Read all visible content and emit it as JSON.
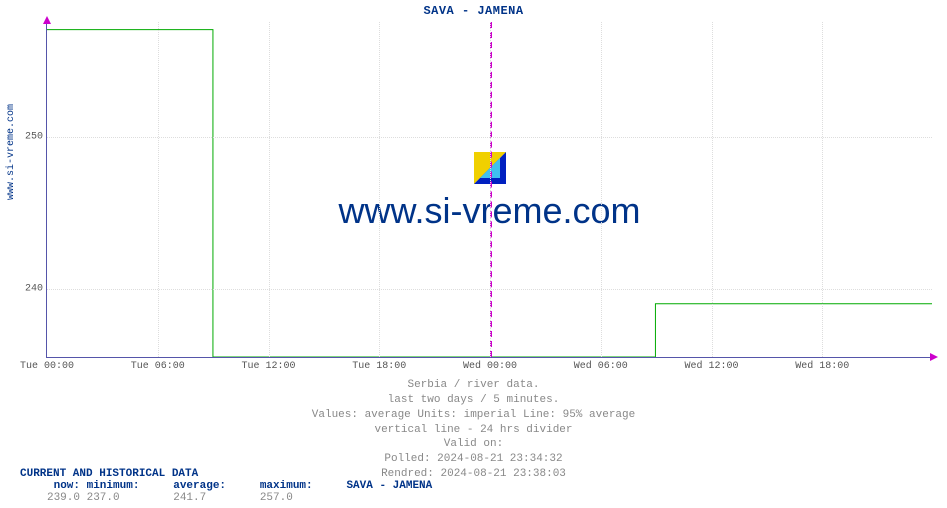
{
  "title": "SAVA -  JAMENA",
  "ylabel_watermark": "www.si-vreme.com",
  "watermark_text": "www.si-vreme.com",
  "colors": {
    "series_line": "#00aa00",
    "axis": "#5555aa",
    "grid": "#dddddd",
    "divider": "#cc00cc",
    "title": "#003388",
    "meta_text": "#888888",
    "tick_text": "#555555",
    "logo_yellow": "#f0d000",
    "logo_blue": "#0020c0",
    "logo_cyan": "#40c0f0",
    "background": "#ffffff"
  },
  "chart": {
    "type": "line",
    "x_range_hours": 48,
    "y_min": 235.5,
    "y_max": 257.5,
    "y_ticks": [
      240,
      250
    ],
    "x_ticks": [
      "Tue 00:00",
      "Tue 06:00",
      "Tue 12:00",
      "Tue 18:00",
      "Wed 00:00",
      "Wed 06:00",
      "Wed 12:00",
      "Wed 18:00"
    ],
    "divider_at_hours": 24,
    "series": {
      "points": [
        [
          0,
          257
        ],
        [
          9,
          257
        ],
        [
          9,
          0
        ],
        [
          33,
          0
        ],
        [
          33,
          239
        ],
        [
          48,
          239
        ]
      ],
      "line_width": 1,
      "null_segment_hours": [
        9,
        33
      ],
      "high_value": 257,
      "low_value": 239
    }
  },
  "meta": {
    "line1": "Serbia / river data.",
    "line2": "last two days / 5 minutes.",
    "line3": "Values: average  Units: imperial  Line: 95% average",
    "line4": "vertical line - 24 hrs  divider",
    "line5": "Valid on:",
    "line6": "Polled: 2024-08-21 23:34:32",
    "line7": "Rendred: 2024-08-21 23:38:03"
  },
  "stats": {
    "header": "CURRENT AND HISTORICAL DATA",
    "labels": {
      "now": "now:",
      "min": "minimum:",
      "avg": "average:",
      "max": "maximum:",
      "name": "SAVA -  JAMENA"
    },
    "values": {
      "now": "239.0",
      "min": "237.0",
      "avg": "241.7",
      "max": "257.0"
    }
  }
}
